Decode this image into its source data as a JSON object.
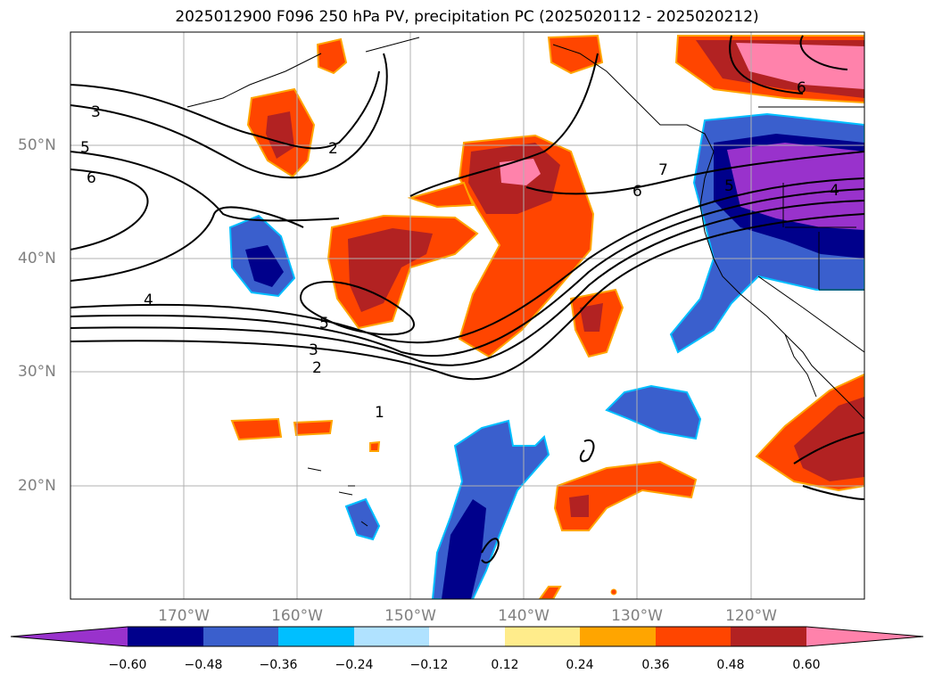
{
  "title": "2025012900 F096 250 hPa PV, precipitation PC (2025020112 - 2025020212)",
  "map": {
    "lon_range": [
      -180,
      -110
    ],
    "lat_range": [
      10,
      60
    ],
    "lon_labels": [
      "170°W",
      "160°W",
      "150°W",
      "140°W",
      "130°W",
      "120°W"
    ],
    "lat_labels": [
      "50°N",
      "40°N",
      "30°N",
      "20°N"
    ],
    "pv_contour_labels": [
      "1",
      "2",
      "3",
      "4",
      "5",
      "6",
      "7",
      "2",
      "3",
      "5",
      "6",
      "4",
      "5",
      "6"
    ]
  },
  "colorbar": {
    "ticks": [
      "−0.60",
      "−0.48",
      "−0.36",
      "−0.24",
      "−0.12",
      "0.12",
      "0.24",
      "0.36",
      "0.48",
      "0.60"
    ],
    "colors": [
      "#9932CC",
      "#00008B",
      "#3A5FCD",
      "#00BFFF",
      "#B0E2FF",
      "#FFFFFF",
      "#FFEC8B",
      "#FFA500",
      "#FF4500",
      "#B22222",
      "#FF82AB"
    ],
    "extend": "both"
  }
}
